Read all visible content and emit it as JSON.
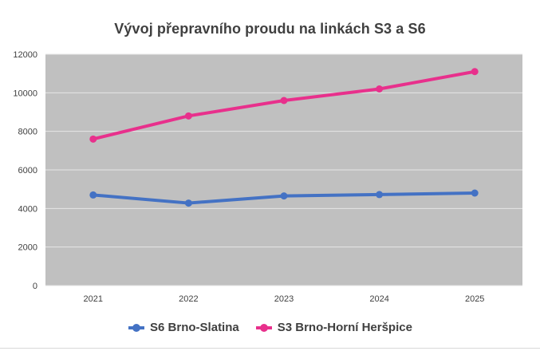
{
  "chart_data": {
    "type": "line",
    "title": "Vývoj přepravního proudu na linkách S3 a S6",
    "xlabel": "",
    "ylabel": "",
    "categories": [
      "2021",
      "2022",
      "2023",
      "2024",
      "2025"
    ],
    "ylim": [
      0,
      12000
    ],
    "yticks": [
      0,
      2000,
      4000,
      6000,
      8000,
      10000,
      12000
    ],
    "grid": true,
    "legend_position": "bottom",
    "plot_background": "#c0c0c0",
    "series": [
      {
        "name": "S6 Brno-Slatina",
        "color": "#4472c4",
        "values": [
          4700,
          4280,
          4650,
          4720,
          4800
        ]
      },
      {
        "name": "S3 Brno-Horní Heršpice",
        "color": "#e8308c",
        "values": [
          7600,
          8800,
          9600,
          10200,
          11100
        ]
      }
    ]
  }
}
